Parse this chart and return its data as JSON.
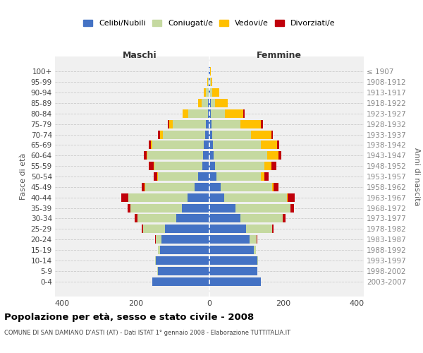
{
  "age_groups": [
    "0-4",
    "5-9",
    "10-14",
    "15-19",
    "20-24",
    "25-29",
    "30-34",
    "35-39",
    "40-44",
    "45-49",
    "50-54",
    "55-59",
    "60-64",
    "65-69",
    "70-74",
    "75-79",
    "80-84",
    "85-89",
    "90-94",
    "95-99",
    "100+"
  ],
  "birth_years": [
    "2003-2007",
    "1998-2002",
    "1993-1997",
    "1988-1992",
    "1983-1987",
    "1978-1982",
    "1973-1977",
    "1968-1972",
    "1963-1967",
    "1958-1962",
    "1953-1957",
    "1948-1952",
    "1943-1947",
    "1938-1942",
    "1933-1937",
    "1928-1932",
    "1923-1927",
    "1918-1922",
    "1913-1917",
    "1908-1912",
    "≤ 1907"
  ],
  "male_celibi": [
    155,
    140,
    145,
    135,
    130,
    120,
    90,
    75,
    60,
    40,
    30,
    20,
    18,
    15,
    12,
    10,
    3,
    3,
    2,
    1,
    1
  ],
  "male_coniugati": [
    0,
    1,
    2,
    5,
    15,
    60,
    105,
    140,
    160,
    135,
    110,
    130,
    150,
    140,
    115,
    90,
    55,
    18,
    8,
    2,
    0
  ],
  "male_vedovi": [
    0,
    0,
    0,
    0,
    0,
    0,
    0,
    0,
    0,
    1,
    2,
    2,
    3,
    5,
    8,
    10,
    15,
    10,
    5,
    2,
    0
  ],
  "male_divorziati": [
    0,
    0,
    0,
    0,
    2,
    5,
    8,
    8,
    20,
    8,
    10,
    12,
    8,
    5,
    5,
    3,
    0,
    0,
    0,
    0,
    0
  ],
  "female_celibi": [
    140,
    130,
    130,
    120,
    110,
    100,
    85,
    70,
    40,
    30,
    20,
    15,
    12,
    10,
    8,
    5,
    3,
    3,
    2,
    1,
    1
  ],
  "female_coniugati": [
    0,
    1,
    3,
    6,
    18,
    70,
    115,
    150,
    170,
    140,
    120,
    135,
    145,
    130,
    105,
    80,
    40,
    12,
    5,
    2,
    0
  ],
  "female_vedovi": [
    0,
    0,
    0,
    0,
    0,
    0,
    0,
    1,
    2,
    5,
    10,
    18,
    30,
    45,
    55,
    55,
    50,
    35,
    20,
    5,
    2
  ],
  "female_divorziati": [
    0,
    0,
    0,
    0,
    2,
    5,
    8,
    10,
    20,
    12,
    12,
    15,
    8,
    5,
    5,
    5,
    2,
    0,
    0,
    0,
    0
  ],
  "color_celibi": "#4472c4",
  "color_coniugati": "#c5d9a0",
  "color_vedovi": "#ffc000",
  "color_divorziati": "#c0000b",
  "xlim": 420,
  "title": "Popolazione per età, sesso e stato civile - 2008",
  "subtitle": "COMUNE DI SAN DAMIANO D'ASTI (AT) - Dati ISTAT 1° gennaio 2008 - Elaborazione TUTTITALIA.IT",
  "ylabel_left": "Fasce di età",
  "ylabel_right": "Anni di nascita",
  "xlabel_left": "Maschi",
  "xlabel_right": "Femmine"
}
